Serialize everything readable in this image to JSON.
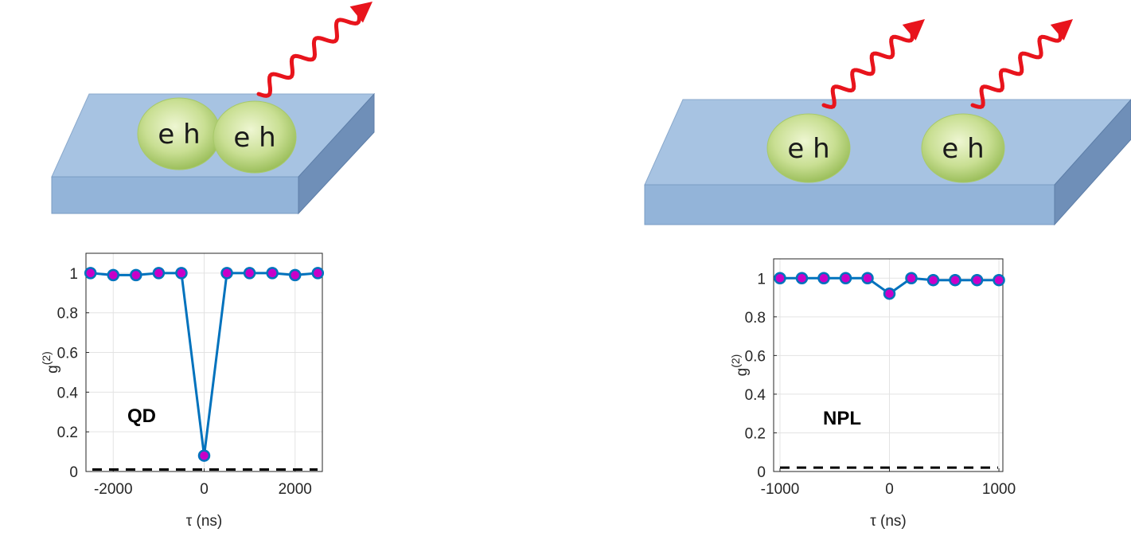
{
  "chart_data": [
    {
      "type": "line",
      "x": [
        -2500,
        -2000,
        -1500,
        -1000,
        -500,
        0,
        500,
        1000,
        1500,
        2000,
        2500
      ],
      "values": [
        1,
        0.99,
        0.99,
        1,
        1,
        0.08,
        1,
        1,
        1,
        0.99,
        1
      ],
      "color": "#0072bd",
      "marker_color": "#c800c8",
      "xlim": [
        -2600,
        2600
      ],
      "xticks": [
        -2000,
        0,
        2000
      ],
      "ylim": [
        0,
        1.1
      ],
      "yticks": [
        0,
        0.2,
        0.4,
        0.6,
        0.8,
        1
      ],
      "grid": true,
      "reference_line": 0.01,
      "xlabel": "τ (ns)",
      "ylabel": "g",
      "ylabel_sup": "(2)",
      "annotation": "QD"
    },
    {
      "type": "line",
      "x": [
        -1000,
        -800,
        -600,
        -400,
        -200,
        0,
        200,
        400,
        600,
        800,
        1000
      ],
      "values": [
        1,
        1,
        1,
        1,
        1,
        0.92,
        1,
        0.99,
        0.99,
        0.99,
        0.99
      ],
      "color": "#0072bd",
      "marker_color": "#c800c8",
      "xlim": [
        -1058,
        1036
      ],
      "xticks": [
        -1000,
        0,
        1000
      ],
      "ylim": [
        0,
        1.1
      ],
      "yticks": [
        0,
        0.2,
        0.4,
        0.6,
        0.8,
        1
      ],
      "grid": true,
      "reference_line": 0.02,
      "xlabel": "τ (ns)",
      "ylabel": "g",
      "ylabel_sup": "(2)",
      "annotation": "NPL"
    }
  ],
  "illustrations": [
    {
      "labels": [
        "e h",
        "e h"
      ]
    },
    {
      "labels": [
        "e h",
        "e h"
      ]
    }
  ]
}
